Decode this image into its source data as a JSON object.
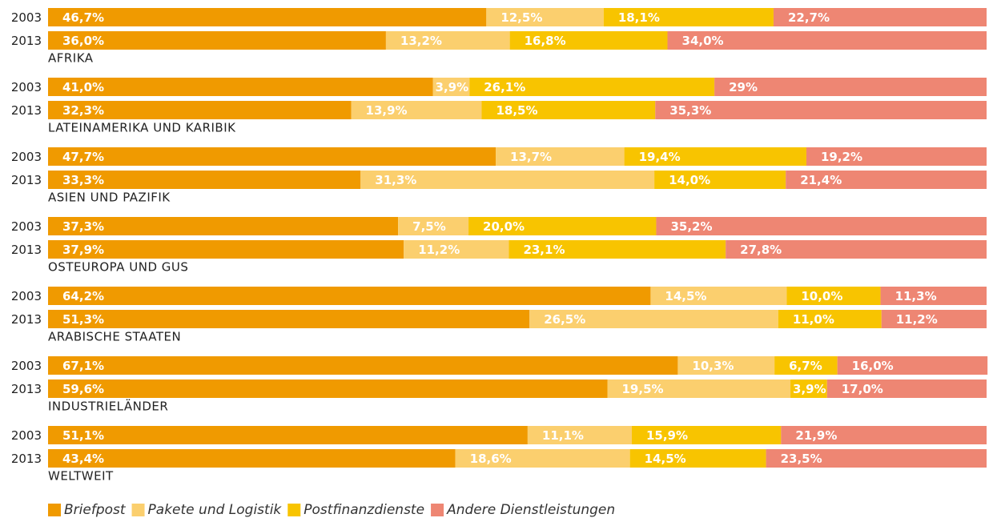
{
  "chart_data": {
    "type": "stacked-bar-horizontal",
    "categories": [
      "2003",
      "2013",
      "2003",
      "2013",
      "2003",
      "2013",
      "2003",
      "2013",
      "2003",
      "2013",
      "2003",
      "2013",
      "2003",
      "2013"
    ],
    "groups": [
      "AFRIKA",
      "LATEINAMERIKA UND KARIBIK",
      "ASIEN UND PAZIFIK",
      "OSTEUROPA UND GUS",
      "ARABISCHE STAATEN",
      "INDUSTRIELÄNDER",
      "WELTWEIT"
    ],
    "xlim": [
      0,
      100
    ],
    "legend": "bottom-left",
    "series": [
      {
        "name": "Briefpost",
        "color": "#f09a00",
        "values": [
          46.7,
          36.0,
          41.0,
          32.3,
          47.7,
          33.3,
          37.3,
          37.9,
          64.2,
          51.3,
          67.1,
          59.6,
          51.1,
          43.4
        ],
        "value_labels": [
          "46,7%",
          "36,0%",
          "41,0%",
          "32,3%",
          "47,7%",
          "33,3%",
          "37,3%",
          "37,9%",
          "64,2%",
          "51,3%",
          "67,1%",
          "59,6%",
          "51,1%",
          "43,4%"
        ]
      },
      {
        "name": "Pakete und Logistik",
        "color": "#fbcf6e",
        "values": [
          12.5,
          13.2,
          3.9,
          13.9,
          13.7,
          31.3,
          7.5,
          11.2,
          14.5,
          26.5,
          10.3,
          19.5,
          11.1,
          18.6
        ],
        "value_labels": [
          "12,5%",
          "13,2%",
          "3,9%",
          "13,9%",
          "13,7%",
          "31,3%",
          "7,5%",
          "11,2%",
          "14,5%",
          "26,5%",
          "10,3%",
          "19,5%",
          "11,1%",
          "18,6%"
        ]
      },
      {
        "name": "Postfinanzdienste",
        "color": "#f8c400",
        "values": [
          18.1,
          16.8,
          26.1,
          18.5,
          19.4,
          14.0,
          20.0,
          23.1,
          10.0,
          11.0,
          6.7,
          3.9,
          15.9,
          14.5
        ],
        "value_labels": [
          "18,1%",
          "16,8%",
          "26,1%",
          "18,5%",
          "19,4%",
          "14,0%",
          "20,0%",
          "23,1%",
          "10,0%",
          "11,0%",
          "6,7%",
          "3,9%",
          "15,9%",
          "14,5%"
        ]
      },
      {
        "name": "Andere Dienstleistungen",
        "color": "#ee8673",
        "values": [
          22.7,
          34.0,
          29,
          35.3,
          19.2,
          21.4,
          35.2,
          27.8,
          11.3,
          11.2,
          16.0,
          17.0,
          21.9,
          23.5
        ],
        "value_labels": [
          "22,7%",
          "34,0%",
          "29%",
          "35,3%",
          "19,2%",
          "21,4%",
          "35,2%",
          "27,8%",
          "11,3%",
          "11,2%",
          "16,0%",
          "17,0%",
          "21,9%",
          "23,5%"
        ]
      }
    ]
  }
}
